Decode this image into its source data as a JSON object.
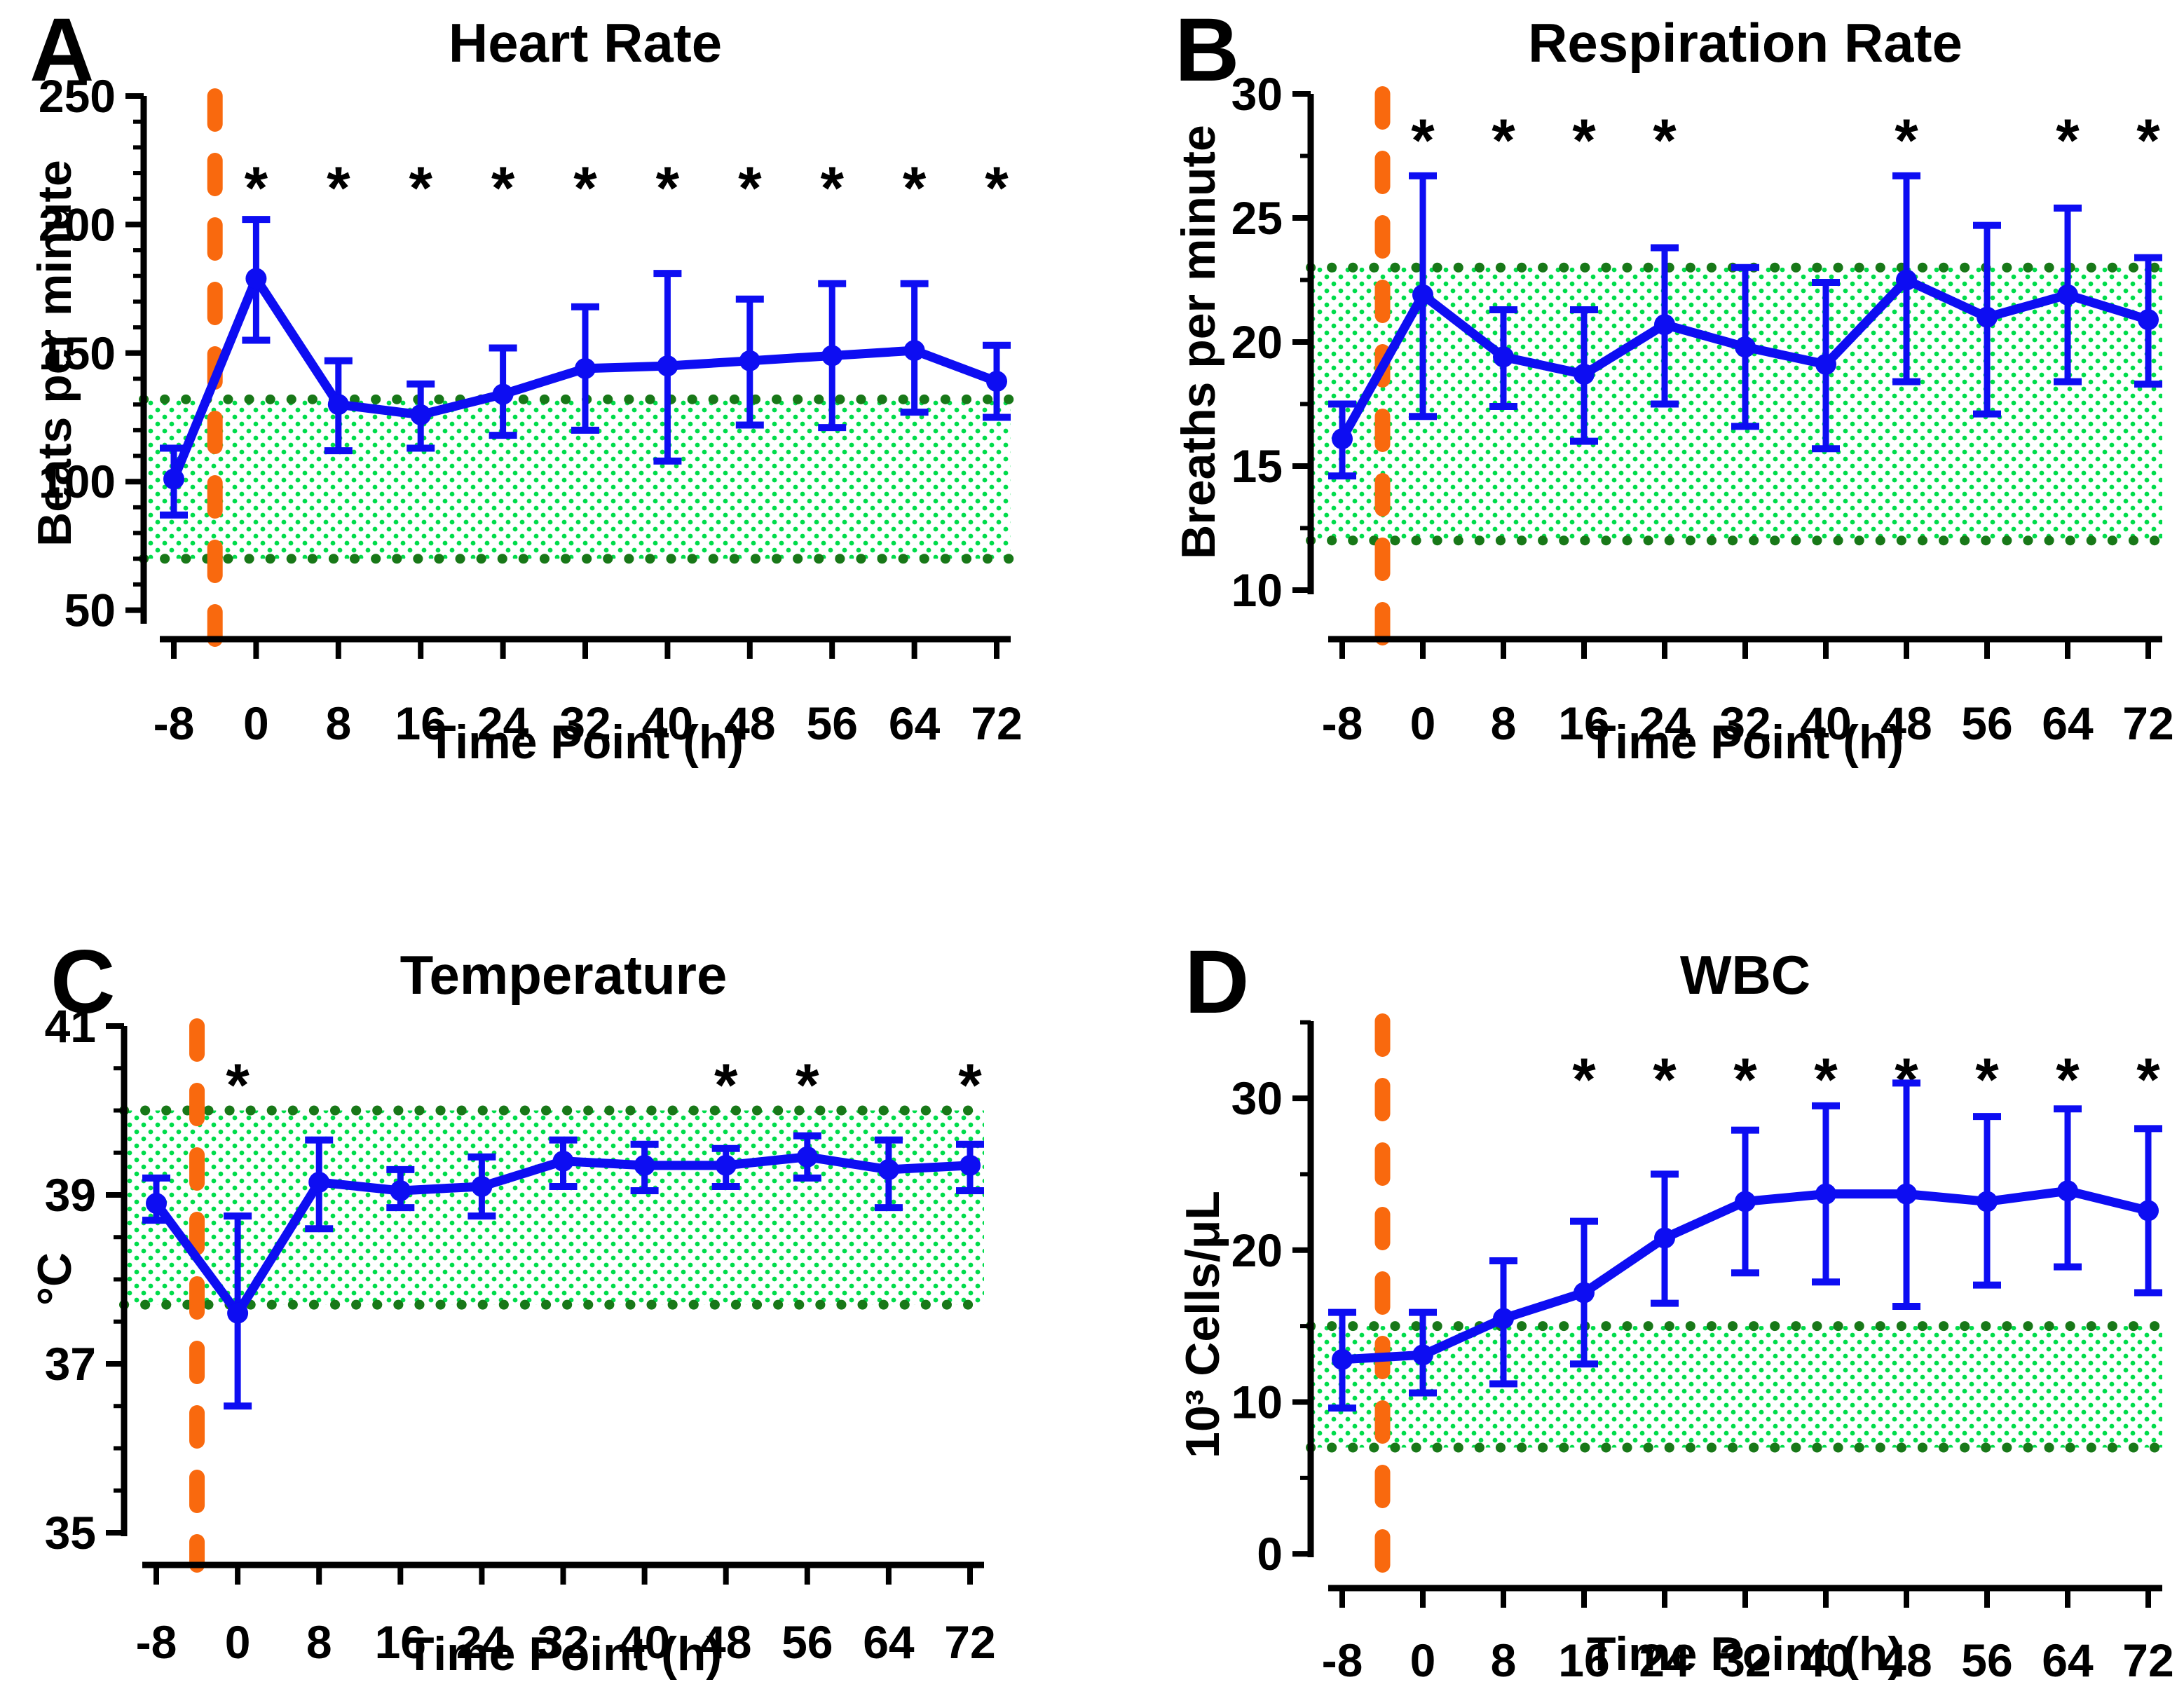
{
  "figure": {
    "background": "#ffffff",
    "x_axis_title": "Time Point (h)",
    "significance_marker": "*"
  },
  "colors": {
    "series_blue": "#0d0df2",
    "event_line_orange": "#f9690e",
    "band_fill_dot_green": "#00dc4b",
    "band_border_dot_green": "#187818",
    "axis_black": "#000000"
  },
  "chart_data": [
    {
      "type": "line",
      "panel_letter": "A",
      "title": "Heart Rate",
      "xlabel": "Time Point (h)",
      "ylabel": "Beats per minute",
      "x_ticks": [
        -8,
        0,
        8,
        16,
        24,
        32,
        40,
        48,
        56,
        64,
        72
      ],
      "y_ticks": [
        50,
        100,
        150,
        200,
        250
      ],
      "ylim": [
        38,
        250
      ],
      "xlim": [
        -8,
        72
      ],
      "grid": false,
      "legend": "none",
      "normal_range_band": {
        "low": 70,
        "high": 132
      },
      "event_line_x": -4,
      "x": [
        -8,
        0,
        8,
        16,
        24,
        32,
        40,
        48,
        56,
        64,
        72
      ],
      "mean": [
        101,
        179,
        130,
        126,
        134,
        144,
        145,
        147,
        149,
        151,
        139
      ],
      "err_low": [
        87,
        155,
        112,
        113,
        118,
        120,
        108,
        122,
        121,
        127,
        125
      ],
      "err_high": [
        113,
        202,
        147,
        138,
        152,
        168,
        181,
        171,
        177,
        177,
        153
      ],
      "significant_x": [
        0,
        8,
        16,
        24,
        32,
        40,
        48,
        56,
        64,
        72
      ]
    },
    {
      "type": "line",
      "panel_letter": "B",
      "title": "Respiration Rate",
      "xlabel": "Time Point (h)",
      "ylabel": "Breaths per minute",
      "x_ticks": [
        -8,
        0,
        8,
        16,
        24,
        32,
        40,
        48,
        56,
        64,
        72
      ],
      "y_ticks": [
        10,
        15,
        20,
        25,
        30
      ],
      "ylim": [
        9.8,
        30
      ],
      "xlim": [
        -8,
        72
      ],
      "grid": false,
      "legend": "none",
      "normal_range_band": {
        "low": 12,
        "high": 23
      },
      "event_line_x": -4,
      "x": [
        -8,
        0,
        8,
        16,
        24,
        32,
        40,
        48,
        56,
        64,
        72
      ],
      "mean": [
        16.1,
        21.9,
        19.4,
        18.7,
        20.7,
        19.8,
        19.1,
        22.5,
        21.0,
        21.9,
        20.9
      ],
      "err_low": [
        14.6,
        17.0,
        17.4,
        16.0,
        17.5,
        16.6,
        15.7,
        18.4,
        17.1,
        18.4,
        18.3
      ],
      "err_high": [
        17.5,
        26.7,
        21.3,
        21.3,
        23.8,
        23.0,
        22.4,
        26.7,
        24.7,
        25.4,
        23.4
      ],
      "significant_x": [
        0,
        8,
        16,
        24,
        48,
        64,
        72
      ]
    },
    {
      "type": "line",
      "panel_letter": "C",
      "title": "Temperature",
      "xlabel": "Time Point (h)",
      "ylabel": "°C",
      "x_ticks": [
        -8,
        0,
        8,
        16,
        24,
        32,
        40,
        48,
        56,
        64,
        72
      ],
      "y_ticks": [
        35,
        37,
        39,
        41
      ],
      "ylim": [
        34.95,
        41
      ],
      "xlim": [
        -8,
        72
      ],
      "grid": false,
      "legend": "none",
      "normal_range_band": {
        "low": 37.7,
        "high": 40.0
      },
      "event_line_x": -4,
      "x": [
        -8,
        0,
        8,
        16,
        24,
        32,
        40,
        48,
        56,
        64,
        72
      ],
      "mean": [
        38.9,
        37.6,
        39.15,
        39.05,
        39.1,
        39.4,
        39.35,
        39.35,
        39.45,
        39.3,
        39.35
      ],
      "err_low": [
        38.7,
        36.5,
        38.6,
        38.85,
        38.75,
        39.1,
        39.05,
        39.1,
        39.2,
        38.85,
        39.05
      ],
      "err_high": [
        39.2,
        38.75,
        39.65,
        39.3,
        39.45,
        39.65,
        39.6,
        39.55,
        39.7,
        39.65,
        39.6
      ],
      "significant_x": [
        0,
        48,
        56,
        72
      ]
    },
    {
      "type": "line",
      "panel_letter": "D",
      "title": "WBC",
      "xlabel": "Time Point (h)",
      "ylabel": "10³ Cells/μL",
      "x_ticks": [
        -8,
        0,
        8,
        16,
        24,
        32,
        40,
        48,
        56,
        64,
        72
      ],
      "y_ticks": [
        0,
        10,
        20,
        30
      ],
      "ylim": [
        0,
        35
      ],
      "xlim": [
        -8,
        72
      ],
      "grid": false,
      "legend": "none",
      "normal_range_band": {
        "low": 7,
        "high": 15
      },
      "event_line_x": -4,
      "x": [
        -8,
        0,
        8,
        16,
        24,
        32,
        40,
        48,
        56,
        64,
        72
      ],
      "mean": [
        12.8,
        13.1,
        15.5,
        17.2,
        20.8,
        23.2,
        23.7,
        23.7,
        23.2,
        23.9,
        22.6
      ],
      "err_low": [
        9.6,
        10.6,
        11.2,
        12.5,
        16.5,
        18.5,
        17.9,
        16.3,
        17.7,
        18.9,
        17.2
      ],
      "err_high": [
        15.9,
        15.9,
        19.3,
        21.9,
        25.0,
        27.9,
        29.5,
        31.0,
        28.8,
        29.3,
        28.0
      ],
      "significant_x": [
        16,
        24,
        32,
        40,
        48,
        56,
        64,
        72
      ]
    }
  ]
}
